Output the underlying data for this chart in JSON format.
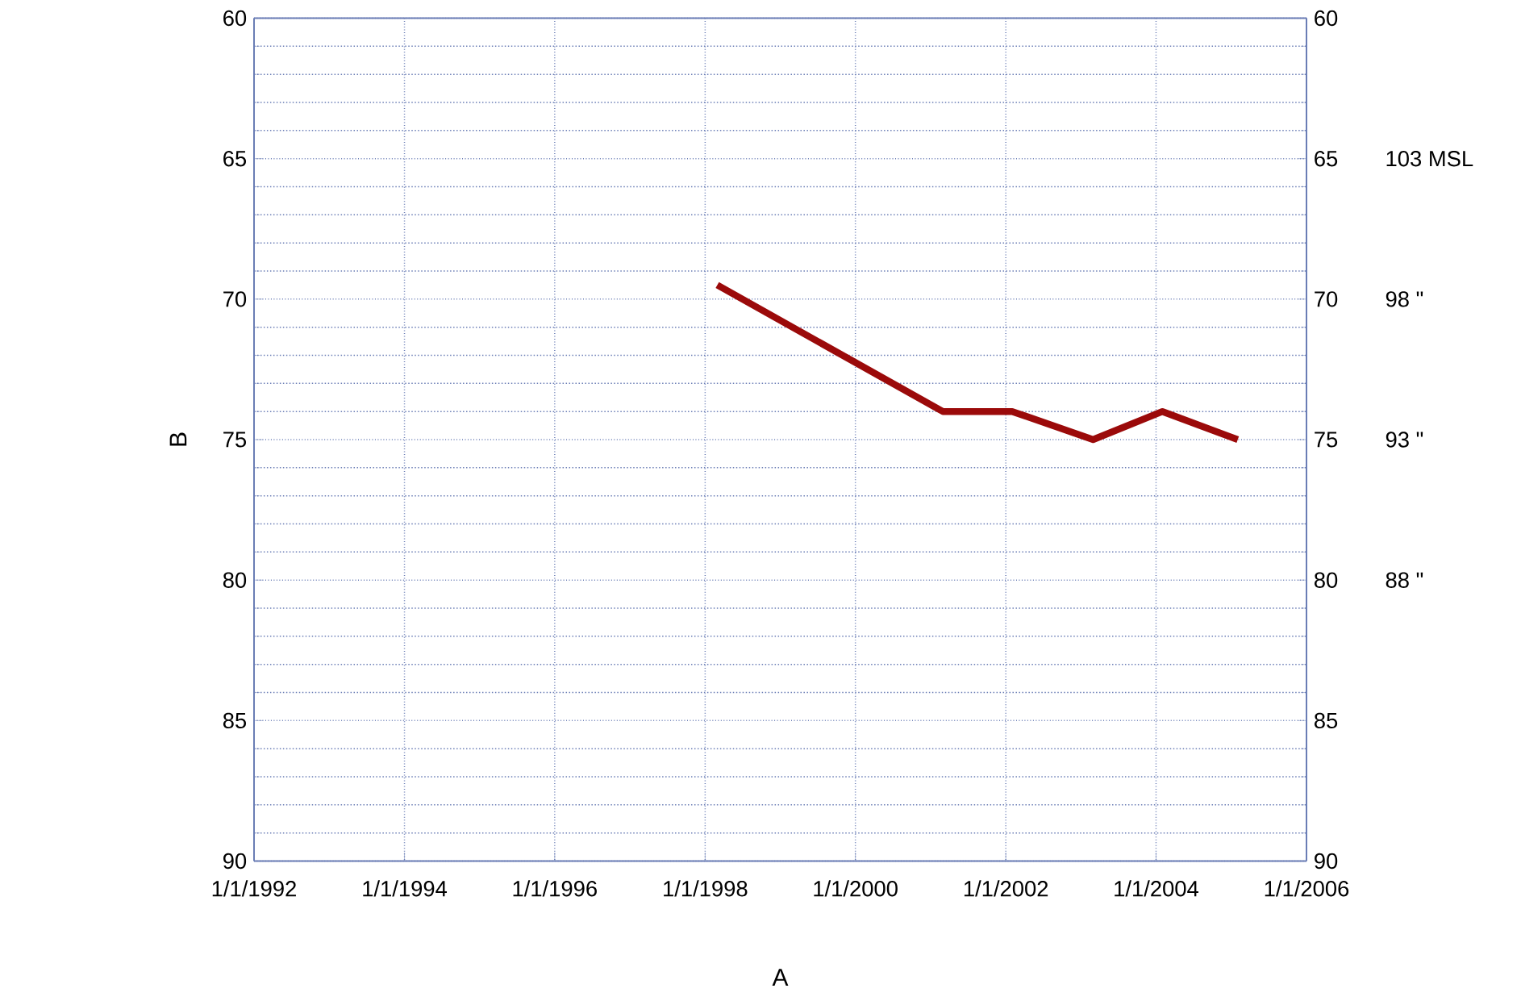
{
  "chart_data": {
    "type": "line",
    "xlabel": "A",
    "ylabel": "B",
    "x": [
      "1998-03",
      "2001-03",
      "2002-02",
      "2003-03",
      "2004-02",
      "2005-02"
    ],
    "series": [
      {
        "color": "#9b0a0a",
        "values": [
          69.5,
          74,
          74,
          75,
          74,
          75
        ]
      }
    ],
    "xlim": [
      "1992-01-01",
      "2006-01-01"
    ],
    "xticks": [
      {
        "value": "1992-01-01",
        "label": "1/1/1992"
      },
      {
        "value": "1994-01-01",
        "label": "1/1/1994"
      },
      {
        "value": "1996-01-01",
        "label": "1/1/1996"
      },
      {
        "value": "1998-01-01",
        "label": "1/1/1998"
      },
      {
        "value": "2000-01-01",
        "label": "1/1/2000"
      },
      {
        "value": "2002-01-01",
        "label": "1/1/2002"
      },
      {
        "value": "2004-01-01",
        "label": "1/1/2004"
      },
      {
        "value": "2006-01-01",
        "label": "1/1/2006"
      }
    ],
    "ylim": [
      90,
      60
    ],
    "yticks": [
      60,
      65,
      70,
      75,
      80,
      85,
      90
    ],
    "y2lim": [
      90,
      60
    ],
    "y2ticks": [
      60,
      65,
      70,
      75,
      80,
      85,
      90
    ],
    "annotations": [
      "103 MSL",
      "98 \"",
      "93 \"",
      "88 \""
    ],
    "grid": true,
    "marker": "none",
    "line_style": "solid"
  }
}
